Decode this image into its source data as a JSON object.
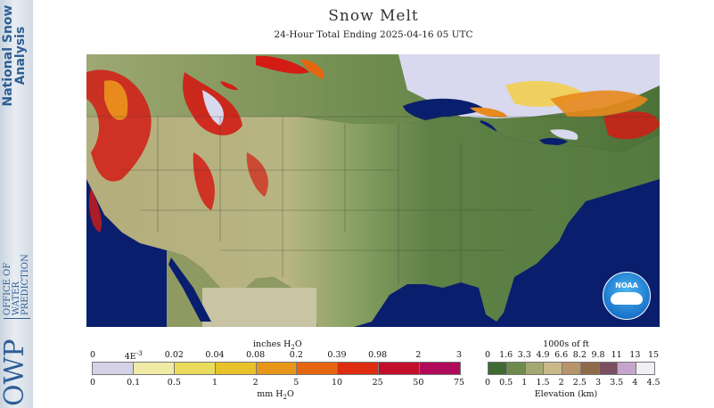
{
  "sidebar": {
    "title_line1": "National Snow",
    "title_line2": "Analysis",
    "org_letters": "OWP",
    "org_name": [
      "OFFICE OF",
      "WATER",
      "PREDICTION"
    ]
  },
  "header": {
    "title": "Snow Melt",
    "subtitle": "24-Hour Total Ending 2025-04-16 05 UTC"
  },
  "map": {
    "logo_text": "NOAA",
    "colors": {
      "ocean": "#0a1e6e",
      "land_low": "#5c7f44",
      "land_mid": "#a9b377",
      "land_high": "#d2c79a",
      "snow": "#d8d8f0",
      "melt_light": "#f0d060",
      "melt_mid": "#e88a1c",
      "melt_high": "#d21c14",
      "no_data": "#c8c4a4"
    }
  },
  "melt_legend": {
    "top_unit": "inches H",
    "top_unit_sub": "2",
    "top_unit_end": "O",
    "top_ticks": [
      "0",
      "4E",
      "0.02",
      "0.04",
      "0.08",
      "0.2",
      "0.39",
      "0.98",
      "2",
      "3"
    ],
    "top_tick_sup": "-3",
    "bottom_ticks": [
      "0",
      "0.1",
      "0.5",
      "1",
      "2",
      "5",
      "10",
      "25",
      "50",
      "75"
    ],
    "bottom_unit": "mm H",
    "bottom_unit_sub": "2",
    "bottom_unit_end": "O",
    "colors": [
      "#d4d2e6",
      "#efeaa4",
      "#e9dc5c",
      "#e8c22a",
      "#e8961a",
      "#e5660f",
      "#dd2c0f",
      "#c20e2a",
      "#b00a5a"
    ]
  },
  "elev_legend": {
    "top_unit": "1000s of ft",
    "top_ticks": [
      "0",
      "1.6",
      "3.3",
      "4.9",
      "6.6",
      "8.2",
      "9.8",
      "11",
      "13",
      "15"
    ],
    "bottom_ticks": [
      "0",
      "0.5",
      "1",
      "1.5",
      "2",
      "2.5",
      "3",
      "3.5",
      "4",
      "4.5"
    ],
    "bottom_unit": "Elevation (km)",
    "colors": [
      "#3f6a34",
      "#6e8a4c",
      "#a3a870",
      "#c9b88a",
      "#b89468",
      "#8f6a4a",
      "#7a5060",
      "#c4a6cc",
      "#f1eef4"
    ]
  }
}
